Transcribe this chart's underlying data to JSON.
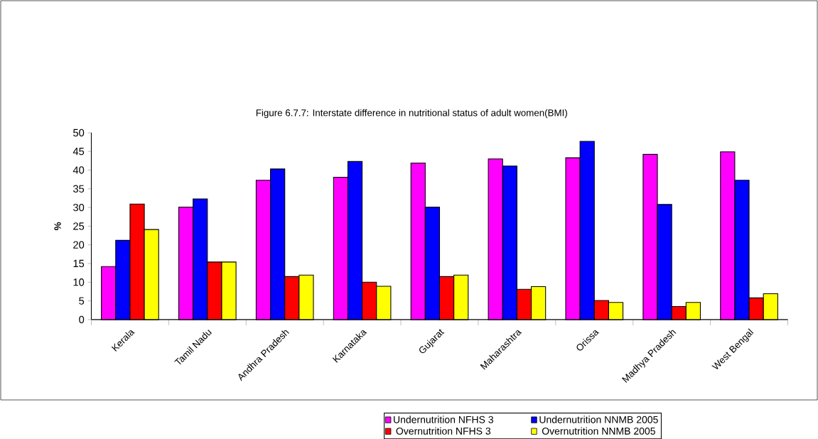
{
  "chart_data": {
    "type": "bar",
    "title": "Figure 6.7.7: Interstate difference in nutritional status of adult women(BMI)",
    "ylabel": "%",
    "categories": [
      "Kerala",
      "Tamil Nadu",
      "Andhra Pradesh",
      "Karnataka",
      "Gujarat",
      "Maharashtra",
      "Orissa",
      "Madhya Pradesh",
      "West Bengal"
    ],
    "series": [
      {
        "name": "Undernutrition NFHS 3",
        "color": "#ff00ff",
        "values": [
          14.2,
          30.1,
          37.3,
          38.1,
          41.9,
          43.0,
          43.3,
          44.2,
          44.9
        ]
      },
      {
        "name": "Undernutrition NNMB 2005",
        "color": "#0000ff",
        "values": [
          21.2,
          32.3,
          40.3,
          42.3,
          30.1,
          41.1,
          47.7,
          30.8,
          37.3
        ]
      },
      {
        "name": "Overnutrition NFHS 3",
        "color": "#ff0000",
        "values": [
          30.9,
          15.4,
          11.5,
          10.0,
          11.5,
          8.1,
          5.1,
          3.5,
          5.8
        ]
      },
      {
        "name": "Overnutrition NNMB 2005",
        "color": "#ffff00",
        "values": [
          24.1,
          15.4,
          11.9,
          8.9,
          11.9,
          8.8,
          4.6,
          4.6,
          6.9
        ]
      }
    ],
    "ylim": [
      0,
      50
    ],
    "yticks": [
      0,
      5,
      10,
      15,
      20,
      25,
      30,
      35,
      40,
      45,
      50
    ],
    "grid": false,
    "legend": "bottom right"
  }
}
